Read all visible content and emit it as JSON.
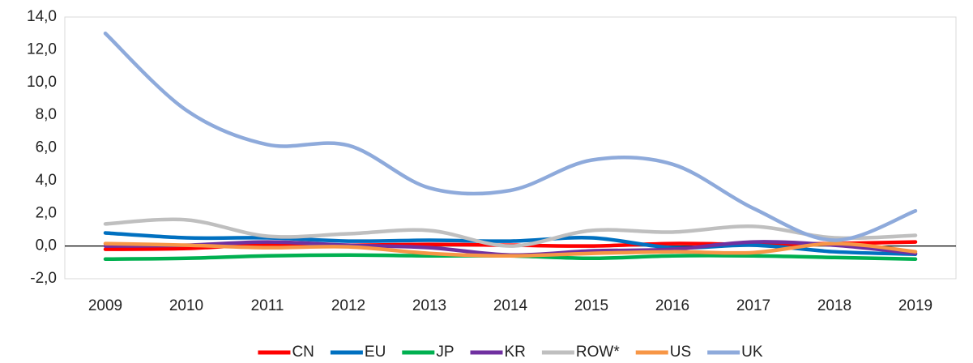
{
  "chart_data": {
    "type": "line",
    "categories": [
      "2009",
      "2010",
      "2011",
      "2012",
      "2013",
      "2014",
      "2015",
      "2016",
      "2017",
      "2018",
      "2019"
    ],
    "series": [
      {
        "name": "CN",
        "color": "#ff0000",
        "values": [
          -0.2,
          -0.15,
          0.1,
          0.05,
          0.1,
          0.05,
          0.0,
          0.15,
          0.1,
          0.15,
          0.25
        ]
      },
      {
        "name": "EU",
        "color": "#0070c0",
        "values": [
          0.8,
          0.5,
          0.5,
          0.3,
          0.35,
          0.3,
          0.5,
          -0.1,
          0.05,
          -0.35,
          -0.5
        ]
      },
      {
        "name": "JP",
        "color": "#00b050",
        "values": [
          -0.8,
          -0.75,
          -0.6,
          -0.55,
          -0.6,
          -0.6,
          -0.75,
          -0.6,
          -0.6,
          -0.7,
          -0.8
        ]
      },
      {
        "name": "KR",
        "color": "#7030a0",
        "values": [
          0.0,
          0.05,
          0.25,
          0.05,
          -0.1,
          -0.55,
          -0.3,
          -0.2,
          0.25,
          0.05,
          -0.45
        ]
      },
      {
        "name": "ROW*",
        "color": "#bfbfbf",
        "values": [
          1.35,
          1.6,
          0.6,
          0.75,
          0.95,
          0.0,
          0.95,
          0.85,
          1.2,
          0.5,
          0.65
        ]
      },
      {
        "name": "US",
        "color": "#f79646",
        "values": [
          0.15,
          0.05,
          -0.1,
          -0.05,
          -0.45,
          -0.6,
          -0.45,
          -0.35,
          -0.4,
          0.15,
          -0.35
        ]
      },
      {
        "name": "UK",
        "color": "#8eaadb",
        "values": [
          13.0,
          8.3,
          6.2,
          6.15,
          3.55,
          3.4,
          5.25,
          5.0,
          2.3,
          0.35,
          2.15
        ]
      }
    ],
    "ylim": [
      -2,
      14
    ],
    "yticks": [
      {
        "value": -2,
        "label": "-2,0"
      },
      {
        "value": 0,
        "label": "0,0"
      },
      {
        "value": 2,
        "label": "2,0"
      },
      {
        "value": 4,
        "label": "4,0"
      },
      {
        "value": 6,
        "label": "6,0"
      },
      {
        "value": 8,
        "label": "8,0"
      },
      {
        "value": 10,
        "label": "10,0"
      },
      {
        "value": 12,
        "label": "12,0"
      },
      {
        "value": 14,
        "label": "14,0"
      }
    ],
    "grid": false,
    "legend": "bottom"
  }
}
